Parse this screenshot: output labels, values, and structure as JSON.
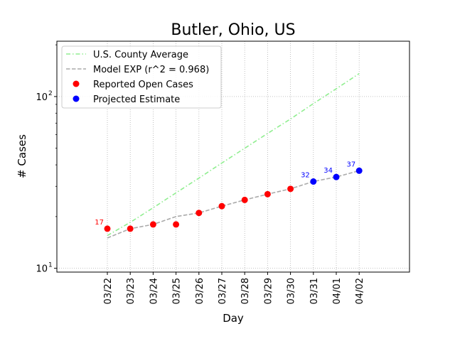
{
  "chart_data": {
    "type": "line",
    "title": "Butler, Ohio, US",
    "xlabel": "Day",
    "ylabel": "# Cases",
    "yscale": "log",
    "ylim": [
      9.5,
      210
    ],
    "categories": [
      "03/22",
      "03/23",
      "03/24",
      "03/25",
      "03/26",
      "03/27",
      "03/28",
      "03/29",
      "03/30",
      "03/31",
      "04/01",
      "04/02"
    ],
    "y_ticks": [
      {
        "value": 10,
        "label": "10",
        "exp": "1"
      },
      {
        "value": 100,
        "label": "10",
        "exp": "2"
      }
    ],
    "grid": "x-dotted, y-major-dotted",
    "legend_position": "top-left",
    "series": [
      {
        "name": "U.S. County Average",
        "style": "dash-dot",
        "color": "#90ee90",
        "values": [
          15.5,
          18.5,
          22.5,
          27.5,
          33.5,
          41,
          50,
          61,
          74,
          91,
          111,
          136
        ]
      },
      {
        "name": "Model EXP (r^2 = 0.968)",
        "style": "dashed",
        "color": "#aaaaaa",
        "values": [
          15,
          17,
          18,
          20,
          21,
          23,
          25,
          27,
          29,
          32,
          34,
          37
        ]
      },
      {
        "name": "Reported Open Cases",
        "style": "marker",
        "color": "#ff0000",
        "values": [
          17,
          17,
          18,
          18,
          21,
          23,
          25,
          27,
          29,
          null,
          null,
          null
        ]
      },
      {
        "name": "Projected Estimate",
        "style": "marker",
        "color": "#0000ff",
        "values": [
          null,
          null,
          null,
          null,
          null,
          null,
          null,
          null,
          null,
          32,
          34,
          37
        ]
      }
    ],
    "annotations": [
      {
        "category": "03/22",
        "text": "17",
        "color": "#ff0000"
      },
      {
        "category": "03/31",
        "text": "32",
        "color": "#0000ff"
      },
      {
        "category": "04/01",
        "text": "34",
        "color": "#0000ff"
      },
      {
        "category": "04/02",
        "text": "37",
        "color": "#0000ff"
      }
    ]
  }
}
